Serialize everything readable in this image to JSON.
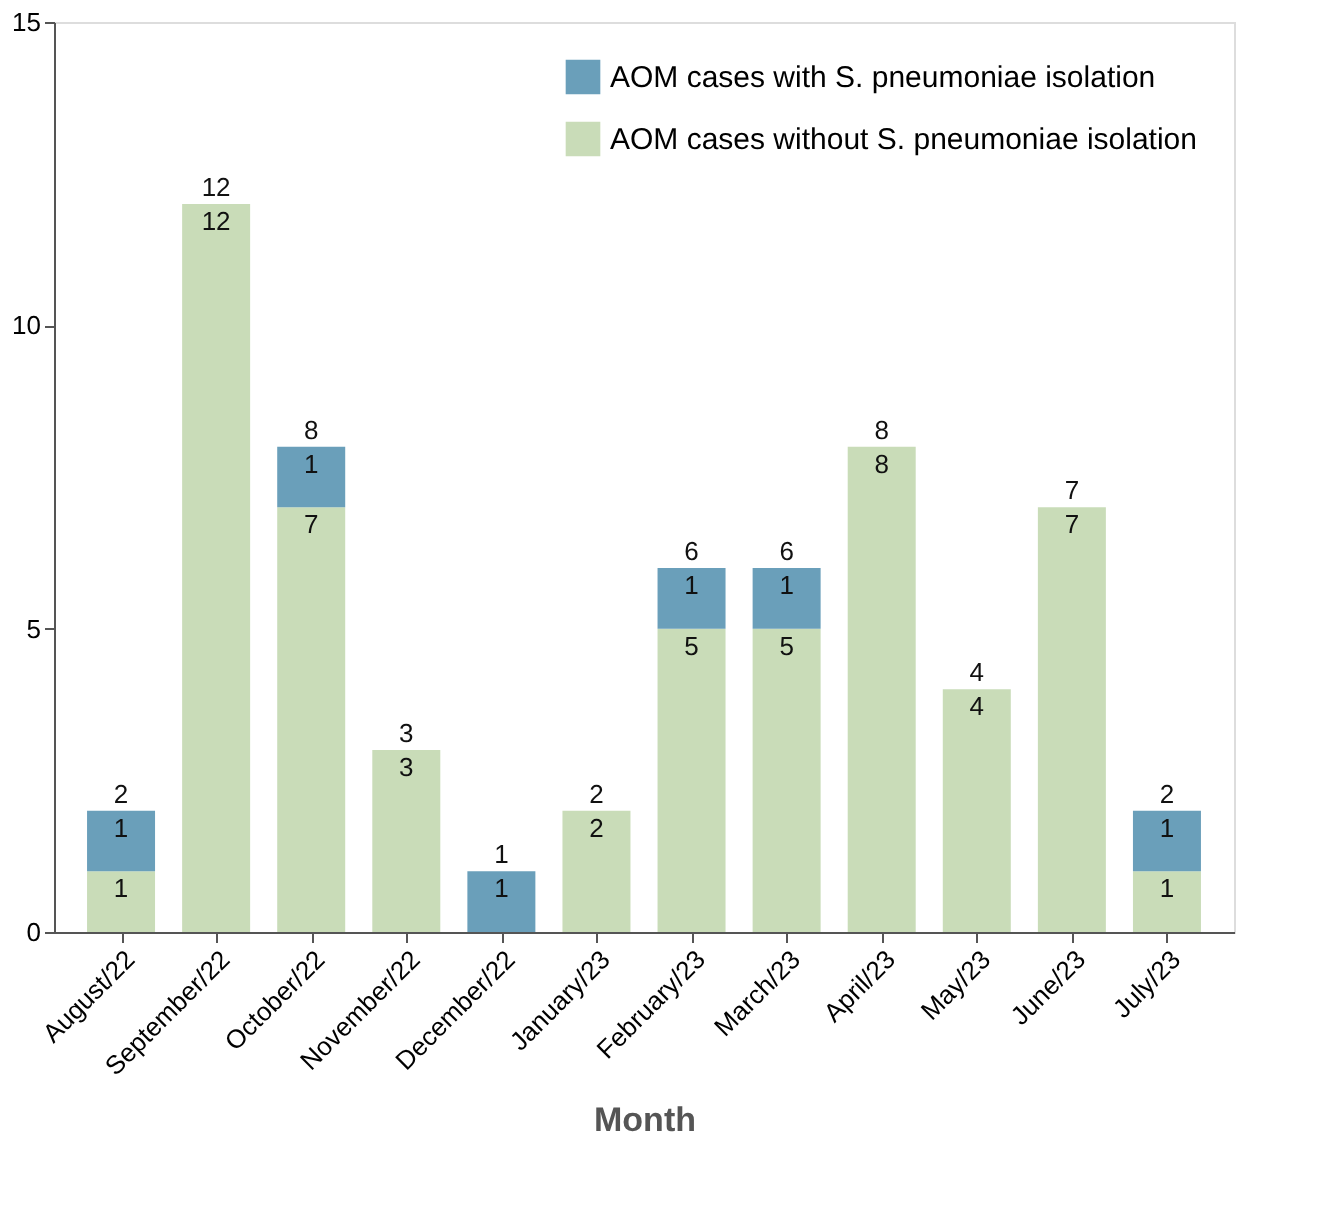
{
  "chart_data": {
    "type": "bar",
    "stacked": true,
    "xlabel": "Month",
    "categories": [
      "August/22",
      "September/22",
      "October/22",
      "November/22",
      "December/22",
      "January/23",
      "February/23",
      "March/23",
      "April/23",
      "May/23",
      "June/23",
      "July/23"
    ],
    "series": [
      {
        "name": "AOM cases without S. pneumoniae isolation",
        "color": "#c9dcb8",
        "values": [
          1,
          12,
          7,
          3,
          0,
          2,
          5,
          5,
          8,
          4,
          7,
          1
        ],
        "value_labels": [
          "1",
          "12",
          "7",
          "3",
          null,
          "2",
          "5",
          "5",
          "8",
          "4",
          "7",
          "1"
        ]
      },
      {
        "name": "AOM cases with S. pneumoniae isolation",
        "color": "#6a9fba",
        "values": [
          1,
          0,
          1,
          0,
          1,
          0,
          1,
          1,
          0,
          0,
          0,
          1
        ],
        "value_labels": [
          "1",
          null,
          "1",
          null,
          "1",
          null,
          "1",
          "1",
          null,
          null,
          null,
          "1"
        ]
      }
    ],
    "totals": [
      "2",
      "12",
      "8",
      "3",
      "1",
      "2",
      "6",
      "6",
      "8",
      "4",
      "7",
      "2"
    ],
    "ylim": [
      0,
      15
    ],
    "yticks": [
      0,
      5,
      10,
      15
    ],
    "grid": false,
    "legend": "top right"
  }
}
